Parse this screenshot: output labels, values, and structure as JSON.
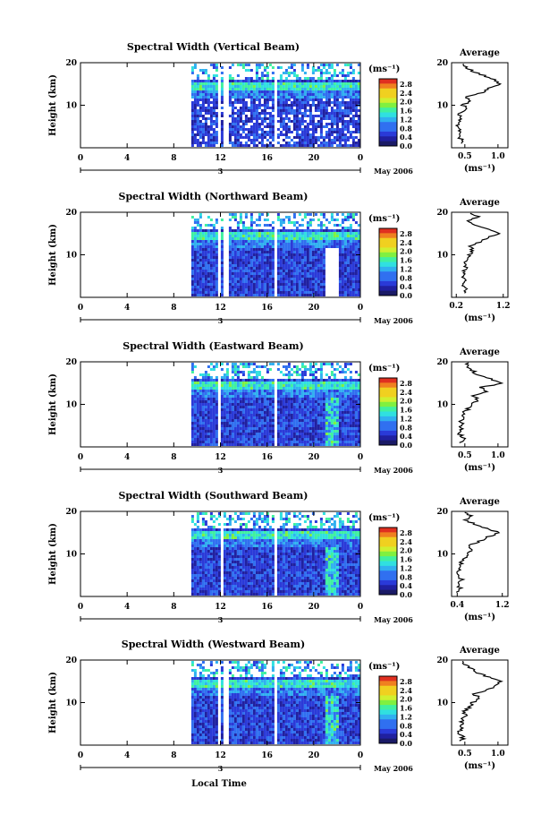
{
  "figure": {
    "xlabel": "Local Time",
    "date_label": "May 2006",
    "day_label": "3",
    "colorbar_unit": "(ms⁻¹)",
    "avg_unit": "(ms⁻¹)"
  },
  "chart_data": [
    {
      "type": "heatmap",
      "title": "Spectral Width (Vertical Beam)",
      "ylabel": "Height (km)",
      "xlabel": "Local Time",
      "xticks": [
        "0",
        "4",
        "8",
        "12",
        "16",
        "20",
        "0"
      ],
      "xlim": [
        0,
        24
      ],
      "yticks": [
        "20",
        "10"
      ],
      "ylim": [
        0,
        20
      ],
      "colorbar_ticks": [
        "2.8",
        "2.4",
        "2.0",
        "1.6",
        "1.2",
        "0.8",
        "0.4",
        "0.0"
      ],
      "data_start_hour": 9.5,
      "gap_hours": [
        11.8,
        12.4,
        16.6
      ],
      "avg_title": "Average",
      "avg_xticks": [
        "0.5",
        "1.0"
      ],
      "avg_xlim": [
        0.3,
        1.15
      ],
      "avg_profile_heights": [
        1,
        2,
        3,
        4,
        5,
        6,
        7,
        8,
        9,
        10,
        11,
        12,
        13,
        14,
        15,
        16,
        17,
        18,
        19,
        20
      ],
      "avg_profile_values": [
        0.42,
        0.45,
        0.4,
        0.44,
        0.38,
        0.4,
        0.45,
        0.42,
        0.5,
        0.48,
        0.6,
        0.5,
        0.75,
        0.85,
        1.05,
        0.95,
        0.8,
        0.6,
        0.52,
        0.5
      ]
    },
    {
      "type": "heatmap",
      "title": "Spectral Width (Northward Beam)",
      "ylabel": "Height (km)",
      "xlabel": "Local Time",
      "xticks": [
        "0",
        "4",
        "8",
        "12",
        "16",
        "20",
        "0"
      ],
      "xlim": [
        0,
        24
      ],
      "yticks": [
        "20",
        "10"
      ],
      "ylim": [
        0,
        20
      ],
      "colorbar_ticks": [
        "2.8",
        "2.4",
        "2.0",
        "1.6",
        "1.2",
        "0.8",
        "0.4",
        "0.0"
      ],
      "data_start_hour": 9.5,
      "gap_hours": [
        11.8,
        12.4,
        16.6
      ],
      "avg_title": "Average",
      "avg_xticks": [
        "0.2",
        "1.2"
      ],
      "avg_xlim": [
        0.1,
        1.3
      ],
      "avg_profile_heights": [
        1,
        2,
        3,
        4,
        5,
        6,
        7,
        8,
        9,
        10,
        11,
        12,
        13,
        14,
        15,
        16,
        17,
        18,
        19,
        20
      ],
      "avg_profile_values": [
        0.35,
        0.4,
        0.32,
        0.38,
        0.35,
        0.36,
        0.4,
        0.38,
        0.45,
        0.48,
        0.55,
        0.5,
        0.7,
        0.85,
        1.1,
        0.9,
        0.6,
        0.45,
        0.7,
        0.4
      ]
    },
    {
      "type": "heatmap",
      "title": "Spectral Width (Eastward Beam)",
      "ylabel": "Height (km)",
      "xlabel": "Local Time",
      "xticks": [
        "0",
        "4",
        "8",
        "12",
        "16",
        "20",
        "0"
      ],
      "xlim": [
        0,
        24
      ],
      "yticks": [
        "20",
        "10"
      ],
      "ylim": [
        0,
        20
      ],
      "colorbar_ticks": [
        "2.8",
        "2.4",
        "2.0",
        "1.6",
        "1.2",
        "0.8",
        "0.4",
        "0.0"
      ],
      "data_start_hour": 9.5,
      "gap_hours": [
        11.8,
        16.6
      ],
      "avg_title": "Average",
      "avg_xticks": [
        "0.5",
        "1.0"
      ],
      "avg_xlim": [
        0.3,
        1.15
      ],
      "avg_profile_heights": [
        1,
        2,
        3,
        4,
        5,
        6,
        7,
        8,
        9,
        10,
        11,
        12,
        13,
        14,
        15,
        16,
        17,
        18,
        19,
        20
      ],
      "avg_profile_values": [
        0.45,
        0.48,
        0.42,
        0.46,
        0.44,
        0.45,
        0.5,
        0.48,
        0.55,
        0.6,
        0.7,
        0.62,
        0.8,
        0.75,
        1.05,
        0.9,
        0.7,
        0.6,
        0.55,
        0.52
      ]
    },
    {
      "type": "heatmap",
      "title": "Spectral Width (Southward Beam)",
      "ylabel": "Height (km)",
      "xlabel": "Local Time",
      "xticks": [
        "0",
        "4",
        "8",
        "12",
        "16",
        "20",
        "0"
      ],
      "xlim": [
        0,
        24
      ],
      "yticks": [
        "20",
        "10"
      ],
      "ylim": [
        0,
        20
      ],
      "colorbar_ticks": [
        "2.8",
        "2.4",
        "2.0",
        "1.6",
        "1.2",
        "0.8",
        "0.4",
        "0.0"
      ],
      "data_start_hour": 9.5,
      "gap_hours": [
        12.0,
        16.6
      ],
      "avg_title": "Average",
      "avg_xticks": [
        "0.4",
        "1.2"
      ],
      "avg_xlim": [
        0.3,
        1.3
      ],
      "avg_profile_heights": [
        1,
        2,
        3,
        4,
        5,
        6,
        7,
        8,
        9,
        10,
        11,
        12,
        13,
        14,
        15,
        16,
        17,
        18,
        19,
        20
      ],
      "avg_profile_values": [
        0.42,
        0.45,
        0.4,
        0.48,
        0.42,
        0.44,
        0.48,
        0.46,
        0.55,
        0.6,
        0.65,
        0.6,
        0.8,
        0.95,
        1.15,
        0.9,
        0.7,
        0.55,
        0.65,
        0.5
      ]
    },
    {
      "type": "heatmap",
      "title": "Spectral Width (Westward Beam)",
      "ylabel": "Height (km)",
      "xlabel": "Local Time",
      "xticks": [
        "0",
        "4",
        "8",
        "12",
        "16",
        "20",
        "0"
      ],
      "xlim": [
        0,
        24
      ],
      "yticks": [
        "20",
        "10"
      ],
      "ylim": [
        0,
        20
      ],
      "colorbar_ticks": [
        "2.8",
        "2.4",
        "2.0",
        "1.6",
        "1.2",
        "0.8",
        "0.4",
        "0.0"
      ],
      "data_start_hour": 9.5,
      "gap_hours": [
        11.8,
        12.4,
        16.6
      ],
      "avg_title": "Average",
      "avg_xticks": [
        "0.5",
        "1.0"
      ],
      "avg_xlim": [
        0.3,
        1.15
      ],
      "avg_profile_heights": [
        1,
        2,
        3,
        4,
        5,
        6,
        7,
        8,
        9,
        10,
        11,
        12,
        13,
        14,
        15,
        16,
        17,
        18,
        19,
        20
      ],
      "avg_profile_values": [
        0.45,
        0.48,
        0.42,
        0.46,
        0.44,
        0.45,
        0.52,
        0.48,
        0.58,
        0.62,
        0.72,
        0.65,
        0.85,
        0.95,
        1.05,
        0.85,
        0.7,
        0.58,
        0.5,
        0.48
      ]
    }
  ]
}
